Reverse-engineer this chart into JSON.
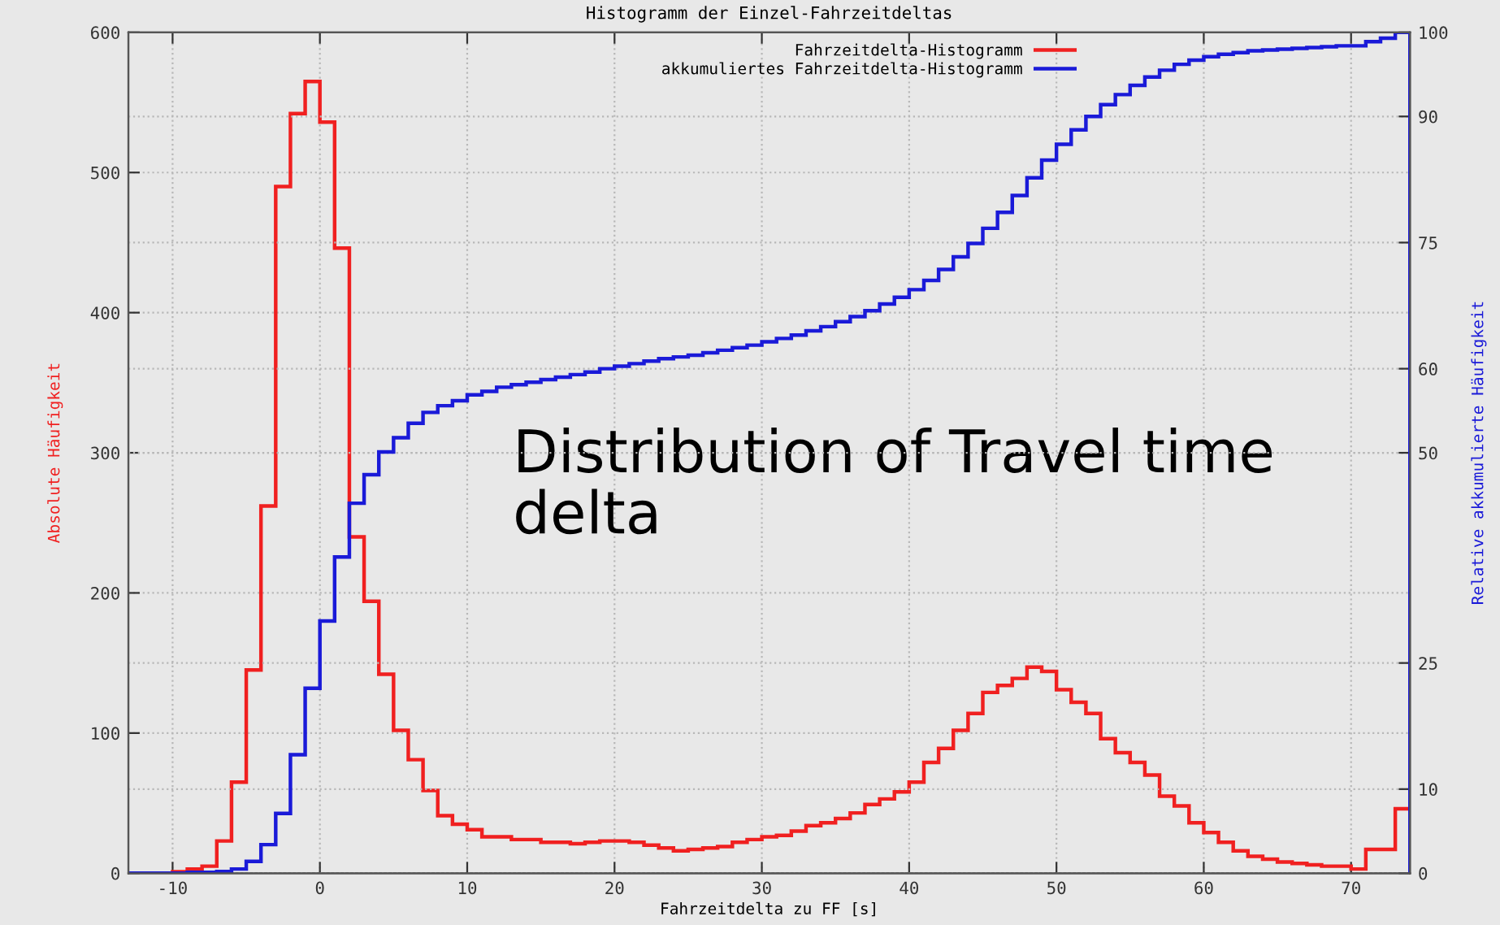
{
  "chart_data": {
    "type": "histogram",
    "title": "Histogramm der Einzel-Fahrzeitdeltas",
    "xlabel": "Fahrzeitdelta zu FF [s]",
    "ylabel": "Absolute Häufigkeit",
    "y2label": "Relative akkumulierte Häufigkeit",
    "annotations": [
      "Distribution of Travel time delta"
    ],
    "bins": [
      -13,
      -12,
      -11,
      -10,
      -9,
      -8,
      -7,
      -6,
      -5,
      -4,
      -3,
      -2,
      -1,
      0,
      1,
      2,
      3,
      4,
      5,
      6,
      7,
      8,
      9,
      10,
      11,
      12,
      13,
      14,
      15,
      16,
      17,
      18,
      19,
      20,
      21,
      22,
      23,
      24,
      25,
      26,
      27,
      28,
      29,
      30,
      31,
      32,
      33,
      34,
      35,
      36,
      37,
      38,
      39,
      40,
      41,
      42,
      43,
      44,
      45,
      46,
      47,
      48,
      49,
      50,
      51,
      52,
      53,
      54,
      55,
      56,
      57,
      58,
      59,
      60,
      61,
      62,
      63,
      64,
      65,
      66,
      67,
      68,
      69,
      70,
      71,
      72,
      73,
      74
    ],
    "series": [
      {
        "name": "Fahrzeitdelta-Histogramm",
        "color": "#f02020",
        "values": [
          0,
          0,
          0,
          1,
          3,
          5,
          23,
          65,
          145,
          262,
          490,
          542,
          565,
          536,
          446,
          240,
          194,
          142,
          102,
          81,
          59,
          41,
          35,
          31,
          26,
          26,
          24,
          24,
          22,
          22,
          21,
          22,
          23,
          23,
          22,
          20,
          18,
          16,
          17,
          18,
          19,
          22,
          24,
          26,
          27,
          30,
          34,
          36,
          39,
          43,
          49,
          53,
          58,
          65,
          79,
          89,
          102,
          114,
          129,
          134,
          139,
          147,
          144,
          131,
          122,
          114,
          96,
          86,
          79,
          70,
          55,
          48,
          36,
          29,
          22,
          16,
          12,
          10,
          8,
          7,
          6,
          5,
          5,
          3,
          17,
          17,
          46
        ]
      },
      {
        "name": "akkumuliertes Fahrzeitdelta-Histogramm",
        "color": "#1a1ad8",
        "axis": "y2",
        "values": [
          0,
          0,
          0,
          0,
          0.1,
          0.1,
          0.2,
          0.5,
          1.4,
          3.4,
          7.1,
          14.1,
          22,
          30,
          37.6,
          44,
          47.4,
          50.1,
          51.8,
          53.5,
          54.8,
          55.6,
          56.2,
          56.9,
          57.3,
          57.8,
          58.1,
          58.4,
          58.7,
          59.0,
          59.3,
          59.6,
          60.0,
          60.3,
          60.6,
          60.9,
          61.2,
          61.4,
          61.6,
          61.9,
          62.2,
          62.5,
          62.8,
          63.2,
          63.6,
          64.0,
          64.5,
          65.0,
          65.6,
          66.2,
          66.9,
          67.7,
          68.5,
          69.4,
          70.5,
          71.8,
          73.3,
          74.9,
          76.7,
          78.6,
          80.6,
          82.7,
          84.8,
          86.7,
          88.4,
          90.0,
          91.4,
          92.6,
          93.7,
          94.7,
          95.5,
          96.2,
          96.7,
          97.1,
          97.4,
          97.6,
          97.8,
          97.9,
          98.0,
          98.1,
          98.2,
          98.3,
          98.4,
          98.4,
          98.9,
          99.3,
          100
        ]
      }
    ],
    "xlim": [
      -13,
      74
    ],
    "xticks": [
      -10,
      0,
      10,
      20,
      30,
      40,
      50,
      60,
      70
    ],
    "ylim": [
      0,
      600
    ],
    "yticks": [
      0,
      100,
      200,
      300,
      400,
      500,
      600
    ],
    "y2lim": [
      0,
      100
    ],
    "y2ticks": [
      0,
      10,
      25,
      50,
      60,
      75,
      90,
      100
    ],
    "grid": true,
    "legend": "top right"
  }
}
